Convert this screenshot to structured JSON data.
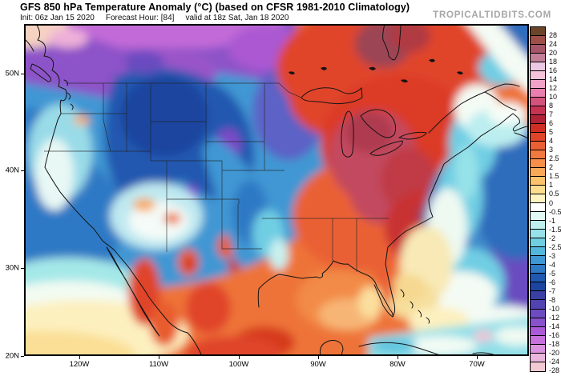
{
  "header": {
    "title": "GFS 850 hPa Temperature Anomaly (°C) (based on CFSR 1981-2010 Climatology)",
    "init": "Init: 06z Jan 15 2020",
    "forecast_hour": "Forecast Hour: [84]",
    "valid": "valid at 18z Sat, Jan 18 2020",
    "watermark": "TROPICALTIDBITS.COM"
  },
  "map": {
    "y_axis_labels": [
      "50N",
      "40N",
      "30N",
      "20N"
    ],
    "x_axis_labels": [
      "120W",
      "110W",
      "100W",
      "90W",
      "80W",
      "70W"
    ]
  },
  "colorbar": {
    "unit": "°C anomaly",
    "labels": [
      "28",
      "24",
      "20",
      "18",
      "16",
      "14",
      "12",
      "10",
      "8",
      "7",
      "6",
      "5",
      "4",
      "3",
      "2.5",
      "2",
      "1.5",
      "1",
      "0.5",
      "0",
      "-0.5",
      "-1",
      "-1.5",
      "-2",
      "-2.5",
      "-3",
      "-4",
      "-5",
      "-6",
      "-7",
      "-8",
      "-10",
      "-12",
      "-14",
      "-16",
      "-18",
      "-20",
      "-24",
      "-28"
    ],
    "colors": [
      "#6b442a",
      "#9f4f48",
      "#a65668",
      "#c37e98",
      "#ecc8e4",
      "#f5c4da",
      "#f0a2c8",
      "#e87fae",
      "#d4537c",
      "#c63352",
      "#b02236",
      "#cf2e24",
      "#e0452a",
      "#ea6034",
      "#f1793f",
      "#f58f4a",
      "#f9a857",
      "#fcc26c",
      "#fede8e",
      "#fff3c2",
      "#ffffff",
      "#e2f8f5",
      "#bff0ee",
      "#97e2e9",
      "#70cee3",
      "#52b6dd",
      "#3f97d3",
      "#2f79c5",
      "#1f59b1",
      "#1b459f",
      "#3a3fa4",
      "#5243b2",
      "#6c4cc0",
      "#8852cc",
      "#aa5ad6",
      "#c671dc",
      "#da93de",
      "#eab6dc",
      "#f3c9d4"
    ]
  }
}
